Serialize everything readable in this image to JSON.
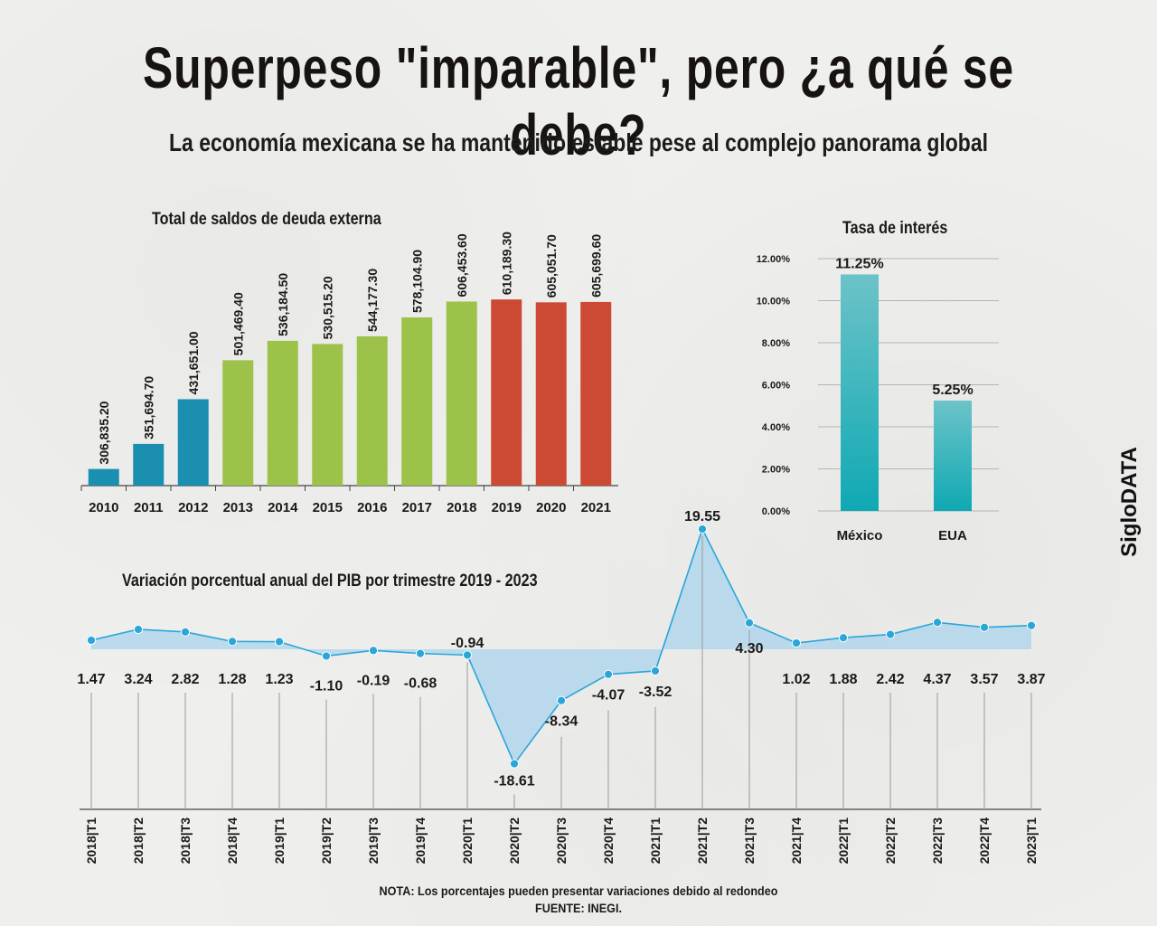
{
  "header": {
    "title": "Superpeso \"imparable\", pero ¿a qué se debe?",
    "subtitle": "La economía mexicana se ha mantenido estable pese al complejo panorama global"
  },
  "brand": "SigloDATA",
  "footer": {
    "note": "NOTA: Los porcentajes pueden presentar variaciones debido al redondeo",
    "source": "FUENTE: INEGI."
  },
  "chart_data": [
    {
      "id": "debt",
      "type": "bar",
      "title": "Total de saldos de deuda externa",
      "categories": [
        "2010",
        "2011",
        "2012",
        "2013",
        "2014",
        "2015",
        "2016",
        "2017",
        "2018",
        "2019",
        "2020",
        "2021"
      ],
      "values": [
        306835.2,
        351694.7,
        431651.0,
        501469.4,
        536184.5,
        530515.2,
        544177.3,
        578104.9,
        606453.6,
        610189.3,
        605051.7,
        605699.6
      ],
      "labels": [
        "306,835.20",
        "351,694.70",
        "431,651.00",
        "501,469.40",
        "536,184.50",
        "530,515.20",
        "544,177.30",
        "578,104.90",
        "606,453.60",
        "610,189.30",
        "605,051.70",
        "605,699.60"
      ],
      "colors": [
        "#1a8fb0",
        "#1a8fb0",
        "#1a8fb0",
        "#9cc24a",
        "#9cc24a",
        "#9cc24a",
        "#9cc24a",
        "#9cc24a",
        "#9cc24a",
        "#cc4a33",
        "#cc4a33",
        "#cc4a33"
      ],
      "ylim": [
        290000,
        625000
      ]
    },
    {
      "id": "rates",
      "type": "bar",
      "title": "Tasa de interés",
      "categories": [
        "México",
        "EUA"
      ],
      "values": [
        11.25,
        5.25
      ],
      "labels": [
        "11.25%",
        "5.25%"
      ],
      "yticks": [
        "0.00%",
        "2.00%",
        "4.00%",
        "6.00%",
        "8.00%",
        "10.00%",
        "12.00%"
      ],
      "ylim": [
        0,
        12
      ],
      "colors": {
        "top": "#6cc3c8",
        "bottom": "#0fa9b3"
      }
    },
    {
      "id": "gdp",
      "type": "line",
      "title": "Variación porcentual anual del PIB por trimestre 2019 - 2023",
      "categories": [
        "2018|T1",
        "2018|T2",
        "2018|T3",
        "2018|T4",
        "2019|T1",
        "2019|T2",
        "2019|T3",
        "2019|T4",
        "2020|T1",
        "2020|T2",
        "2020|T3",
        "2020|T4",
        "2021|T1",
        "2021|T2",
        "2021|T3",
        "2021|T4",
        "2022|T1",
        "2022|T2",
        "2022|T3",
        "2022|T4",
        "2023|T1"
      ],
      "values": [
        1.47,
        3.24,
        2.82,
        1.28,
        1.23,
        -1.1,
        -0.19,
        -0.68,
        -0.94,
        -18.61,
        -8.34,
        -4.07,
        -3.52,
        19.55,
        4.3,
        1.02,
        1.88,
        2.42,
        4.37,
        3.57,
        3.87
      ],
      "labels": [
        "1.47",
        "3.24",
        "2.82",
        "1.28",
        "1.23",
        "-1.10",
        "-0.19",
        "-0.68",
        "-0.94",
        "-18.61",
        "-8.34",
        "-4.07",
        "-3.52",
        "19.55",
        "4.30",
        "1.02",
        "1.88",
        "2.42",
        "4.37",
        "3.57",
        "3.87"
      ],
      "line_color": "#2aa6d8",
      "fill_color": "#a9d3ec"
    }
  ]
}
